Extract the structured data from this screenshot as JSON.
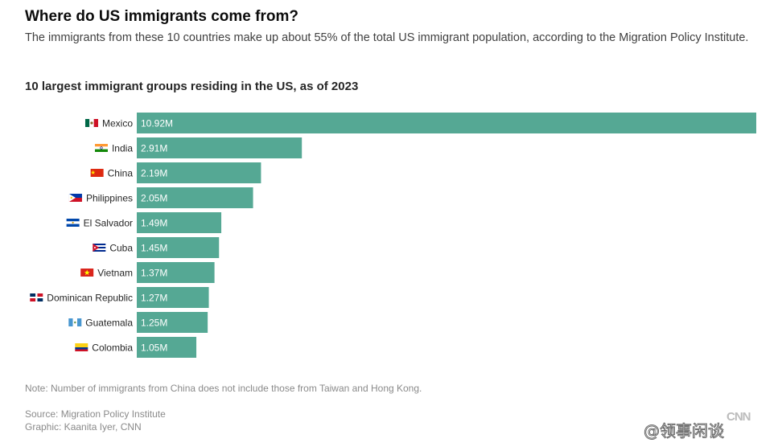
{
  "header": {
    "title": "Where do US immigrants come from?",
    "subtitle": "The immigrants from these 10 countries make up about 55% of the total US immigrant population, according to the Migration Policy Institute."
  },
  "chart_data": {
    "type": "bar",
    "orientation": "horizontal",
    "title": "10 largest immigrant groups residing in the US, as of 2023",
    "xlabel": "",
    "ylabel": "",
    "unit": "M",
    "bar_color": "#55a894",
    "label_color": "#ffffff",
    "categories": [
      "Mexico",
      "India",
      "China",
      "Philippines",
      "El Salvador",
      "Cuba",
      "Vietnam",
      "Dominican Republic",
      "Guatemala",
      "Colombia"
    ],
    "values": [
      10.92,
      2.91,
      2.19,
      2.05,
      1.49,
      1.45,
      1.37,
      1.27,
      1.25,
      1.05
    ],
    "value_labels": [
      "10.92M",
      "2.91M",
      "2.19M",
      "2.05M",
      "1.49M",
      "1.45M",
      "1.37M",
      "1.27M",
      "1.25M",
      "1.05M"
    ],
    "flags": [
      "flag-mexico-icon",
      "flag-india-icon",
      "flag-china-icon",
      "flag-philippines-icon",
      "flag-el-salvador-icon",
      "flag-cuba-icon",
      "flag-vietnam-icon",
      "flag-dominican-republic-icon",
      "flag-guatemala-icon",
      "flag-colombia-icon"
    ],
    "xlim": [
      0,
      10.92
    ],
    "grid": false,
    "legend": "none"
  },
  "footer": {
    "note": "Note: Number of immigrants from China does not include those from Taiwan and Hong Kong.",
    "source": "Source: Migration Policy Institute",
    "graphic": "Graphic: Kaanita Iyer, CNN",
    "logo": "CNN",
    "watermark": "@领事闲谈"
  }
}
